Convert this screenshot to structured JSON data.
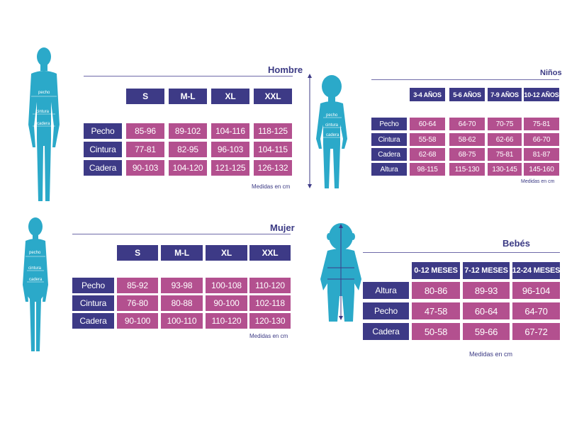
{
  "colors": {
    "figure": "#2ba9c9",
    "header_bg": "#3d3a86",
    "value_bg": "#b3508f",
    "text": "#3b3a84"
  },
  "hombre": {
    "title": "Hombre",
    "sizes": [
      "S",
      "M-L",
      "XL",
      "XXL"
    ],
    "rows": [
      {
        "label": "Pecho",
        "values": [
          "85-96",
          "89-102",
          "104-116",
          "118-125"
        ]
      },
      {
        "label": "Cintura",
        "values": [
          "77-81",
          "82-95",
          "96-103",
          "104-115"
        ]
      },
      {
        "label": "Cadera",
        "values": [
          "90-103",
          "104-120",
          "121-125",
          "126-132"
        ]
      }
    ],
    "note": "Medidas en cm",
    "figure_labels": [
      "pecho",
      "cintura",
      "cadera"
    ]
  },
  "ninos": {
    "title": "Niños",
    "sizes": [
      "3-4 AÑOS",
      "5-6 AÑOS",
      "7-9 AÑOS",
      "10-12 AÑOS"
    ],
    "rows": [
      {
        "label": "Pecho",
        "values": [
          "60-64",
          "64-70",
          "70-75",
          "75-81"
        ]
      },
      {
        "label": "Cintura",
        "values": [
          "55-58",
          "58-62",
          "62-66",
          "66-70"
        ]
      },
      {
        "label": "Cadera",
        "values": [
          "62-68",
          "68-75",
          "75-81",
          "81-87"
        ]
      },
      {
        "label": "Altura",
        "values": [
          "98-115",
          "115-130",
          "130-145",
          "145-160"
        ]
      }
    ],
    "note": "Medidas en cm",
    "figure_labels": [
      "pecho",
      "cintura",
      "cadera"
    ]
  },
  "mujer": {
    "title": "Mujer",
    "sizes": [
      "S",
      "M-L",
      "XL",
      "XXL"
    ],
    "rows": [
      {
        "label": "Pecho",
        "values": [
          "85-92",
          "93-98",
          "100-108",
          "110-120"
        ]
      },
      {
        "label": "Cintura",
        "values": [
          "76-80",
          "80-88",
          "90-100",
          "102-118"
        ]
      },
      {
        "label": "Cadera",
        "values": [
          "90-100",
          "100-110",
          "110-120",
          "120-130"
        ]
      }
    ],
    "note": "Medidas en cm",
    "figure_labels": [
      "pecho",
      "cintura",
      "cadera"
    ]
  },
  "bebes": {
    "title": "Bebés",
    "sizes": [
      "0-12 MESES",
      "7-12 MESES",
      "12-24 MESES"
    ],
    "rows": [
      {
        "label": "Altura",
        "values": [
          "80-86",
          "89-93",
          "96-104"
        ]
      },
      {
        "label": "Pecho",
        "values": [
          "47-58",
          "60-64",
          "64-70"
        ]
      },
      {
        "label": "Cadera",
        "values": [
          "50-58",
          "59-66",
          "67-72"
        ]
      }
    ],
    "note": "Medidas en cm"
  }
}
